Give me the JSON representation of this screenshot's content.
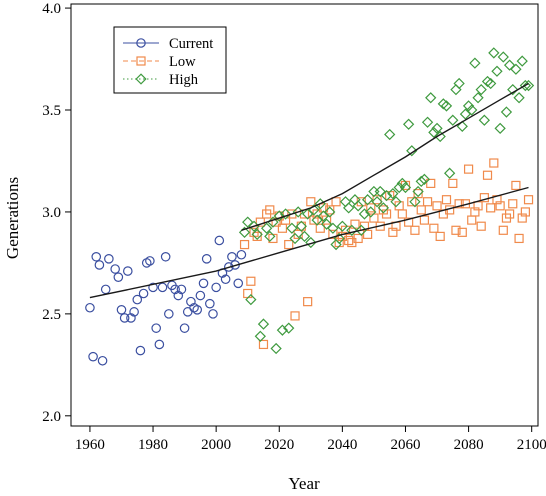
{
  "chart_data": {
    "type": "scatter",
    "title": "",
    "xlabel": "Year",
    "ylabel": "Generations",
    "xlim": [
      1954,
      2102
    ],
    "ylim": [
      1.95,
      4.02
    ],
    "xticks": [
      1960,
      1980,
      2000,
      2020,
      2040,
      2060,
      2080,
      2100
    ],
    "yticks": [
      2.0,
      2.5,
      3.0,
      3.5,
      4.0
    ],
    "xtick_labels": [
      "1960",
      "1980",
      "2000",
      "2020",
      "2040",
      "2060",
      "2080",
      "2100"
    ],
    "ytick_labels": [
      "2.0",
      "2.5",
      "3.0",
      "3.5",
      "4.0"
    ],
    "grid": false,
    "legend_position": "top-left",
    "series": [
      {
        "name": "Current",
        "marker": "circle",
        "line_style": "solid",
        "color": "#3b4fa0",
        "points": [
          [
            1960,
            2.53
          ],
          [
            1961,
            2.29
          ],
          [
            1962,
            2.78
          ],
          [
            1963,
            2.74
          ],
          [
            1964,
            2.27
          ],
          [
            1965,
            2.62
          ],
          [
            1966,
            2.77
          ],
          [
            1968,
            2.72
          ],
          [
            1969,
            2.68
          ],
          [
            1970,
            2.52
          ],
          [
            1971,
            2.48
          ],
          [
            1972,
            2.71
          ],
          [
            1973,
            2.48
          ],
          [
            1974,
            2.51
          ],
          [
            1975,
            2.57
          ],
          [
            1976,
            2.32
          ],
          [
            1977,
            2.6
          ],
          [
            1978,
            2.75
          ],
          [
            1979,
            2.76
          ],
          [
            1980,
            2.63
          ],
          [
            1981,
            2.43
          ],
          [
            1982,
            2.35
          ],
          [
            1983,
            2.63
          ],
          [
            1984,
            2.78
          ],
          [
            1985,
            2.5
          ],
          [
            1986,
            2.64
          ],
          [
            1987,
            2.62
          ],
          [
            1988,
            2.59
          ],
          [
            1989,
            2.62
          ],
          [
            1990,
            2.43
          ],
          [
            1991,
            2.51
          ],
          [
            1992,
            2.56
          ],
          [
            1993,
            2.53
          ],
          [
            1994,
            2.52
          ],
          [
            1995,
            2.59
          ],
          [
            1996,
            2.65
          ],
          [
            1997,
            2.77
          ],
          [
            1998,
            2.55
          ],
          [
            1999,
            2.5
          ],
          [
            2000,
            2.63
          ],
          [
            2001,
            2.86
          ],
          [
            2002,
            2.7
          ],
          [
            2003,
            2.67
          ],
          [
            2004,
            2.73
          ],
          [
            2005,
            2.78
          ],
          [
            2006,
            2.74
          ],
          [
            2007,
            2.65
          ],
          [
            2008,
            2.79
          ]
        ],
        "trend": [
          [
            1960,
            2.58
          ],
          [
            2000,
            2.71
          ],
          [
            2020,
            2.8
          ],
          [
            2040,
            2.89
          ],
          [
            2060,
            2.96
          ],
          [
            2080,
            3.04
          ],
          [
            2099,
            3.12
          ]
        ]
      },
      {
        "name": "Low",
        "marker": "square",
        "line_style": "dashed",
        "color": "#f08a4b",
        "points": [
          [
            2009,
            2.84
          ],
          [
            2010,
            2.6
          ],
          [
            2011,
            2.66
          ],
          [
            2012,
            2.9
          ],
          [
            2013,
            2.88
          ],
          [
            2014,
            2.95
          ],
          [
            2015,
            2.35
          ],
          [
            2016,
            2.99
          ],
          [
            2017,
            3.01
          ],
          [
            2018,
            2.87
          ],
          [
            2019,
            2.95
          ],
          [
            2020,
            2.98
          ],
          [
            2021,
            2.92
          ],
          [
            2022,
            2.96
          ],
          [
            2023,
            2.84
          ],
          [
            2024,
            2.99
          ],
          [
            2025,
            2.49
          ],
          [
            2026,
            2.89
          ],
          [
            2027,
            2.93
          ],
          [
            2028,
            2.99
          ],
          [
            2029,
            2.56
          ],
          [
            2030,
            3.05
          ],
          [
            2031,
            2.96
          ],
          [
            2032,
            2.99
          ],
          [
            2033,
            2.92
          ],
          [
            2034,
            3.02
          ],
          [
            2035,
            2.96
          ],
          [
            2036,
            3.01
          ],
          [
            2037,
            2.89
          ],
          [
            2038,
            3.05
          ],
          [
            2039,
            2.85
          ],
          [
            2040,
            2.88
          ],
          [
            2041,
            2.91
          ],
          [
            2042,
            2.86
          ],
          [
            2043,
            2.85
          ],
          [
            2044,
            2.94
          ],
          [
            2045,
            2.87
          ],
          [
            2046,
            3.05
          ],
          [
            2047,
            2.93
          ],
          [
            2048,
            2.89
          ],
          [
            2049,
            3.02
          ],
          [
            2050,
            2.97
          ],
          [
            2051,
            3.06
          ],
          [
            2052,
            2.93
          ],
          [
            2053,
            3.01
          ],
          [
            2054,
            2.99
          ],
          [
            2055,
            3.08
          ],
          [
            2056,
            2.9
          ],
          [
            2057,
            2.93
          ],
          [
            2058,
            3.03
          ],
          [
            2059,
            2.99
          ],
          [
            2060,
            3.13
          ],
          [
            2061,
            2.95
          ],
          [
            2062,
            3.05
          ],
          [
            2063,
            2.91
          ],
          [
            2064,
            3.09
          ],
          [
            2065,
            3.01
          ],
          [
            2066,
            2.96
          ],
          [
            2067,
            3.05
          ],
          [
            2068,
            3.14
          ],
          [
            2069,
            2.92
          ],
          [
            2070,
            3.03
          ],
          [
            2071,
            2.88
          ],
          [
            2072,
            2.99
          ],
          [
            2073,
            3.06
          ],
          [
            2074,
            3.01
          ],
          [
            2075,
            3.14
          ],
          [
            2076,
            2.91
          ],
          [
            2077,
            3.04
          ],
          [
            2078,
            2.9
          ],
          [
            2079,
            3.04
          ],
          [
            2080,
            3.21
          ],
          [
            2081,
            2.96
          ],
          [
            2082,
            3.0
          ],
          [
            2083,
            3.03
          ],
          [
            2084,
            2.93
          ],
          [
            2085,
            3.07
          ],
          [
            2086,
            3.18
          ],
          [
            2087,
            3.02
          ],
          [
            2088,
            3.24
          ],
          [
            2089,
            3.06
          ],
          [
            2090,
            3.03
          ],
          [
            2091,
            2.91
          ],
          [
            2092,
            2.97
          ],
          [
            2093,
            2.99
          ],
          [
            2094,
            3.04
          ],
          [
            2095,
            3.13
          ],
          [
            2096,
            2.87
          ],
          [
            2097,
            2.97
          ],
          [
            2098,
            3.0
          ],
          [
            2099,
            3.06
          ]
        ],
        "trend": []
      },
      {
        "name": "High",
        "marker": "diamond",
        "line_style": "dotted",
        "color": "#3f9a3f",
        "points": [
          [
            2009,
            2.9
          ],
          [
            2010,
            2.95
          ],
          [
            2011,
            2.57
          ],
          [
            2012,
            2.93
          ],
          [
            2013,
            2.89
          ],
          [
            2014,
            2.39
          ],
          [
            2015,
            2.45
          ],
          [
            2016,
            2.92
          ],
          [
            2017,
            2.88
          ],
          [
            2018,
            2.95
          ],
          [
            2019,
            2.33
          ],
          [
            2020,
            2.98
          ],
          [
            2021,
            2.42
          ],
          [
            2022,
            2.99
          ],
          [
            2023,
            2.43
          ],
          [
            2024,
            2.92
          ],
          [
            2025,
            2.87
          ],
          [
            2026,
            3.0
          ],
          [
            2027,
            2.93
          ],
          [
            2028,
            2.88
          ],
          [
            2029,
            2.99
          ],
          [
            2030,
            2.85
          ],
          [
            2031,
            3.01
          ],
          [
            2032,
            2.96
          ],
          [
            2033,
            3.04
          ],
          [
            2034,
            2.98
          ],
          [
            2035,
            2.94
          ],
          [
            2036,
            3.0
          ],
          [
            2037,
            2.92
          ],
          [
            2038,
            2.84
          ],
          [
            2039,
            2.87
          ],
          [
            2040,
            2.93
          ],
          [
            2041,
            3.05
          ],
          [
            2042,
            3.02
          ],
          [
            2043,
            2.91
          ],
          [
            2044,
            3.06
          ],
          [
            2045,
            3.03
          ],
          [
            2046,
            2.91
          ],
          [
            2047,
            2.99
          ],
          [
            2048,
            3.06
          ],
          [
            2049,
            3.0
          ],
          [
            2050,
            3.1
          ],
          [
            2051,
            3.05
          ],
          [
            2052,
            3.1
          ],
          [
            2053,
            3.02
          ],
          [
            2054,
            3.08
          ],
          [
            2055,
            3.38
          ],
          [
            2056,
            3.09
          ],
          [
            2057,
            3.05
          ],
          [
            2058,
            3.12
          ],
          [
            2059,
            3.14
          ],
          [
            2060,
            3.12
          ],
          [
            2061,
            3.43
          ],
          [
            2062,
            3.3
          ],
          [
            2063,
            3.05
          ],
          [
            2064,
            3.1
          ],
          [
            2065,
            3.15
          ],
          [
            2066,
            3.16
          ],
          [
            2067,
            3.44
          ],
          [
            2068,
            3.56
          ],
          [
            2069,
            3.39
          ],
          [
            2070,
            3.41
          ],
          [
            2071,
            3.37
          ],
          [
            2072,
            3.53
          ],
          [
            2073,
            3.52
          ],
          [
            2074,
            3.19
          ],
          [
            2075,
            3.45
          ],
          [
            2076,
            3.6
          ],
          [
            2077,
            3.63
          ],
          [
            2078,
            3.42
          ],
          [
            2079,
            3.48
          ],
          [
            2080,
            3.52
          ],
          [
            2081,
            3.5
          ],
          [
            2082,
            3.73
          ],
          [
            2083,
            3.56
          ],
          [
            2084,
            3.6
          ],
          [
            2085,
            3.45
          ],
          [
            2086,
            3.64
          ],
          [
            2087,
            3.63
          ],
          [
            2088,
            3.78
          ],
          [
            2089,
            3.69
          ],
          [
            2090,
            3.41
          ],
          [
            2091,
            3.76
          ],
          [
            2092,
            3.49
          ],
          [
            2093,
            3.72
          ],
          [
            2094,
            3.6
          ],
          [
            2095,
            3.7
          ],
          [
            2096,
            3.56
          ],
          [
            2097,
            3.74
          ],
          [
            2098,
            3.62
          ],
          [
            2099,
            3.62
          ]
        ],
        "trend": [
          [
            2008,
            2.91
          ],
          [
            2020,
            2.97
          ],
          [
            2030,
            3.02
          ],
          [
            2040,
            3.09
          ],
          [
            2050,
            3.18
          ],
          [
            2060,
            3.27
          ],
          [
            2070,
            3.37
          ],
          [
            2080,
            3.46
          ],
          [
            2090,
            3.55
          ],
          [
            2099,
            3.63
          ]
        ]
      }
    ]
  }
}
